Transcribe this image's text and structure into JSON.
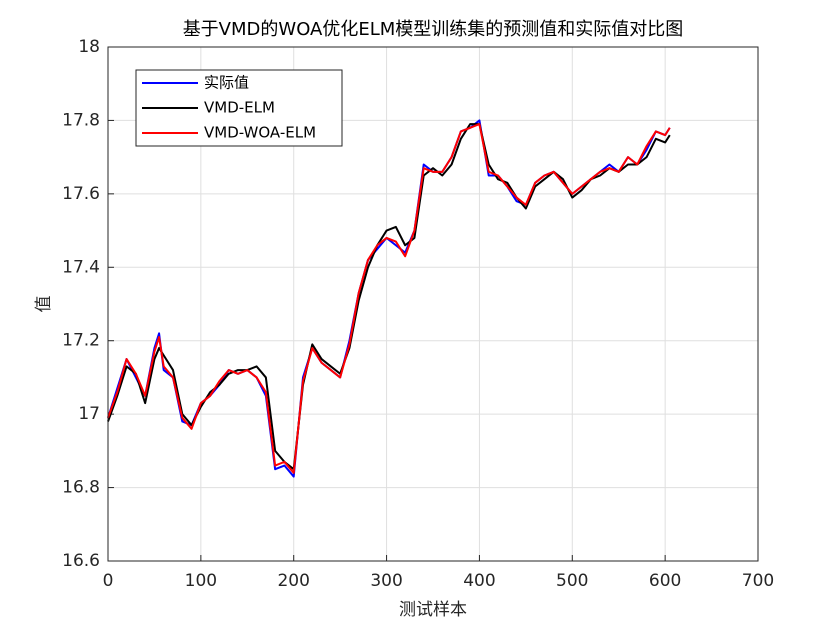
{
  "chart_data": {
    "type": "line",
    "title": "基于VMD的WOA优化ELM模型训练集的预测值和实际值对比图",
    "xlabel": "测试样本",
    "ylabel": "值",
    "x": [
      0,
      10,
      20,
      30,
      40,
      50,
      55,
      60,
      70,
      80,
      90,
      100,
      110,
      120,
      130,
      140,
      150,
      160,
      170,
      180,
      190,
      200,
      210,
      220,
      230,
      240,
      250,
      260,
      270,
      280,
      290,
      300,
      310,
      320,
      330,
      340,
      350,
      360,
      370,
      380,
      390,
      400,
      410,
      420,
      430,
      440,
      450,
      460,
      470,
      480,
      490,
      500,
      510,
      520,
      530,
      540,
      550,
      560,
      570,
      580,
      590,
      600,
      605
    ],
    "series": [
      {
        "name": "实际值",
        "color": "#0000ff",
        "values": [
          16.99,
          17.07,
          17.15,
          17.1,
          17.05,
          17.18,
          17.22,
          17.12,
          17.1,
          16.98,
          16.97,
          17.03,
          17.05,
          17.08,
          17.12,
          17.11,
          17.12,
          17.1,
          17.05,
          16.85,
          16.86,
          16.83,
          17.1,
          17.18,
          17.14,
          17.12,
          17.1,
          17.2,
          17.33,
          17.42,
          17.45,
          17.48,
          17.46,
          17.44,
          17.5,
          17.68,
          17.66,
          17.66,
          17.7,
          17.77,
          17.78,
          17.8,
          17.65,
          17.65,
          17.62,
          17.58,
          17.57,
          17.63,
          17.65,
          17.66,
          17.63,
          17.6,
          17.62,
          17.64,
          17.66,
          17.68,
          17.66,
          17.7,
          17.68,
          17.72,
          17.77,
          17.76,
          17.78
        ]
      },
      {
        "name": "VMD-ELM",
        "color": "#000000",
        "values": [
          16.98,
          17.05,
          17.13,
          17.11,
          17.03,
          17.15,
          17.18,
          17.16,
          17.12,
          17.0,
          16.97,
          17.02,
          17.06,
          17.08,
          17.11,
          17.12,
          17.12,
          17.13,
          17.1,
          16.9,
          16.87,
          16.85,
          17.08,
          17.19,
          17.15,
          17.13,
          17.11,
          17.18,
          17.31,
          17.4,
          17.46,
          17.5,
          17.51,
          17.46,
          17.48,
          17.65,
          17.67,
          17.65,
          17.68,
          17.75,
          17.79,
          17.79,
          17.68,
          17.64,
          17.63,
          17.59,
          17.56,
          17.62,
          17.64,
          17.66,
          17.64,
          17.59,
          17.61,
          17.64,
          17.65,
          17.67,
          17.66,
          17.68,
          17.68,
          17.7,
          17.75,
          17.74,
          17.76
        ]
      },
      {
        "name": "VMD-WOA-ELM",
        "color": "#ff0000",
        "values": [
          16.99,
          17.06,
          17.15,
          17.11,
          17.05,
          17.17,
          17.21,
          17.13,
          17.1,
          16.99,
          16.96,
          17.03,
          17.05,
          17.09,
          17.12,
          17.11,
          17.12,
          17.1,
          17.06,
          16.86,
          16.87,
          16.84,
          17.09,
          17.18,
          17.14,
          17.12,
          17.1,
          17.19,
          17.33,
          17.42,
          17.46,
          17.48,
          17.47,
          17.43,
          17.5,
          17.67,
          17.66,
          17.66,
          17.7,
          17.77,
          17.78,
          17.79,
          17.66,
          17.65,
          17.62,
          17.59,
          17.57,
          17.63,
          17.65,
          17.66,
          17.63,
          17.6,
          17.62,
          17.64,
          17.66,
          17.67,
          17.66,
          17.7,
          17.68,
          17.73,
          17.77,
          17.76,
          17.78
        ]
      }
    ],
    "xlim": [
      0,
      700
    ],
    "ylim": [
      16.6,
      18
    ],
    "xticks": [
      0,
      100,
      200,
      300,
      400,
      500,
      600,
      700
    ],
    "yticks": [
      16.6,
      16.8,
      17,
      17.2,
      17.4,
      17.6,
      17.8,
      18
    ],
    "grid": true,
    "legend": "northwest"
  }
}
